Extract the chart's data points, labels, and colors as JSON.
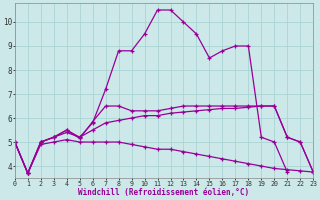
{
  "xlabel": "Windchill (Refroidissement éolien,°C)",
  "bg_color": "#cce8e8",
  "grid_color": "#aad4d4",
  "line_color": "#990099",
  "xlim": [
    0,
    23
  ],
  "ylim": [
    3.5,
    10.8
  ],
  "yticks": [
    4,
    5,
    6,
    7,
    8,
    9,
    10
  ],
  "xticks": [
    0,
    1,
    2,
    3,
    4,
    5,
    6,
    7,
    8,
    9,
    10,
    11,
    12,
    13,
    14,
    15,
    16,
    17,
    18,
    19,
    20,
    21,
    22,
    23
  ],
  "series": [
    {
      "x": [
        0,
        1,
        2,
        3,
        4,
        5,
        6,
        7,
        8,
        9,
        10,
        11,
        12,
        13,
        14,
        15,
        16,
        17,
        18,
        19,
        20,
        21,
        22,
        23
      ],
      "y": [
        5.0,
        3.7,
        4.9,
        5.0,
        5.1,
        5.0,
        5.0,
        5.0,
        5.0,
        4.9,
        4.8,
        4.7,
        4.7,
        4.6,
        4.5,
        4.4,
        4.3,
        4.2,
        4.1,
        4.0,
        3.9,
        3.85,
        3.8,
        3.75
      ]
    },
    {
      "x": [
        0,
        1,
        2,
        3,
        4,
        5,
        6,
        7,
        8,
        9,
        10,
        11,
        12,
        13,
        14,
        15,
        16,
        17,
        18,
        19,
        20,
        21,
        22,
        23
      ],
      "y": [
        5.0,
        3.7,
        5.0,
        5.2,
        5.4,
        5.2,
        5.5,
        5.8,
        5.9,
        6.0,
        6.1,
        6.1,
        6.2,
        6.25,
        6.3,
        6.35,
        6.4,
        6.4,
        6.45,
        6.5,
        6.5,
        5.2,
        5.0,
        3.75
      ]
    },
    {
      "x": [
        0,
        1,
        2,
        3,
        4,
        5,
        6,
        7,
        8,
        9,
        10,
        11,
        12,
        13,
        14,
        15,
        16,
        17,
        18,
        19,
        20,
        21,
        22,
        23
      ],
      "y": [
        5.0,
        3.7,
        5.0,
        5.2,
        5.5,
        5.2,
        5.8,
        7.2,
        8.8,
        8.8,
        9.5,
        10.5,
        10.5,
        10.0,
        9.5,
        8.5,
        8.8,
        9.0,
        9.0,
        5.2,
        5.0,
        3.75,
        null,
        null
      ]
    },
    {
      "x": [
        0,
        1,
        2,
        3,
        4,
        5,
        6,
        7,
        8,
        9,
        10,
        11,
        12,
        13,
        14,
        15,
        16,
        17,
        18,
        19,
        20,
        21,
        22,
        23
      ],
      "y": [
        5.0,
        3.7,
        5.0,
        5.2,
        5.5,
        5.15,
        5.85,
        6.5,
        6.5,
        6.3,
        6.3,
        6.3,
        6.4,
        6.5,
        6.5,
        6.5,
        6.5,
        6.5,
        6.5,
        6.5,
        6.5,
        5.2,
        5.0,
        3.75
      ]
    }
  ]
}
